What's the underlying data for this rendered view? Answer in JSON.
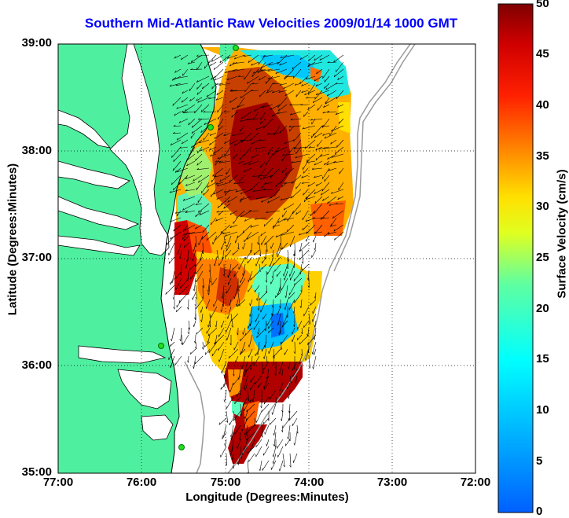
{
  "map": {
    "title": "Southern Mid-Atlantic Raw Velocities 2009/01/14 1000 GMT",
    "xlabel": "Longitude (Degrees:Minutes)",
    "ylabel": "Latitude (Degrees:Minutes)",
    "x_ticks": [
      "77:00",
      "76:00",
      "75:00",
      "74:00",
      "73:00",
      "72:00"
    ],
    "y_ticks": [
      "39:00",
      "38:00",
      "37:00",
      "36:00",
      "35:00"
    ],
    "extent": {
      "lon": [
        -77.0,
        -72.0
      ],
      "lat": [
        35.0,
        39.0
      ]
    },
    "grid": "dotted",
    "colors": {
      "land": "#4fefa0",
      "axes": "#000000",
      "title": "#0000ff",
      "bathymetry": "#9a9a9a",
      "site_marker": "#22dd22"
    }
  },
  "colorbar": {
    "label": "Surface Velocity (cm/s)",
    "ticks": [
      "50",
      "45",
      "40",
      "35",
      "30",
      "25",
      "20",
      "15",
      "10",
      "5",
      "0"
    ],
    "range": [
      0,
      50
    ],
    "colormap": "jet"
  }
}
